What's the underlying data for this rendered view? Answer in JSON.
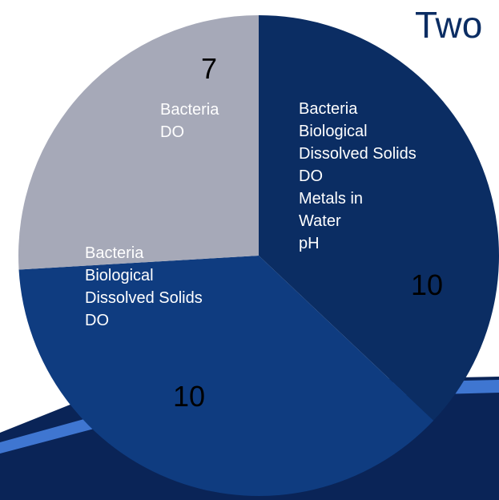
{
  "colors": {
    "background": "#ffffff",
    "slice_dark": "#0b2d63",
    "slice_mid": "#0f3c80",
    "slice_light": "#a6a9b8",
    "banner_base": "#0a2457",
    "banner_stripe": "#3f76d1"
  },
  "title_fragment": "Two",
  "chart_data": {
    "type": "pie",
    "title": "",
    "start_angle_deg": 0,
    "direction": "clockwise",
    "slices": [
      {
        "value": 10,
        "label_lines": [
          "Bacteria",
          "Biological",
          "Dissolved Solids",
          "DO",
          "Metals in",
          "Water",
          "pH"
        ],
        "color": "#0b2d63"
      },
      {
        "value": 10,
        "label_lines": [
          "Bacteria",
          "Biological",
          "Dissolved Solids",
          "DO"
        ],
        "color": "#0f3c80"
      },
      {
        "value": 7,
        "label_lines": [
          "Bacteria",
          "DO"
        ],
        "color": "#a6a9b8"
      }
    ]
  }
}
